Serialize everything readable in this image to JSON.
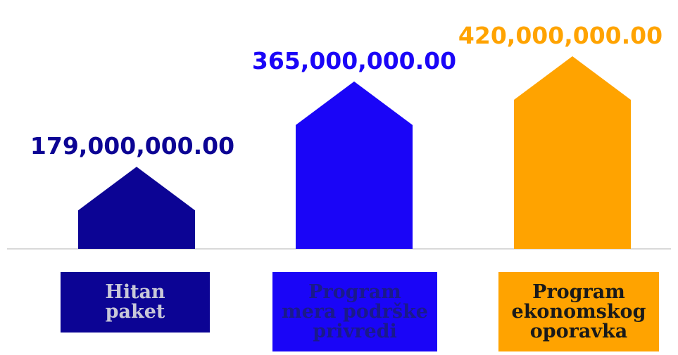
{
  "chart_data": {
    "type": "bar",
    "categories": [
      "Hitan paket",
      "Program mera podrške privredi",
      "Program ekonomskog oporavka"
    ],
    "values": [
      179000000,
      365000000,
      420000000
    ],
    "value_labels": [
      "179,000,000.00",
      "365,000,000.00",
      "420,000,000.00"
    ],
    "category_lines": [
      [
        "Hitan",
        "paket"
      ],
      [
        "Program",
        "mera podrške",
        "privredi"
      ],
      [
        "Program",
        "ekonomskog",
        "oporavka"
      ]
    ],
    "colors": [
      "#0c0494",
      "#1a05f7",
      "#ffa300"
    ],
    "label_text_colors": [
      "#c8c8d8",
      "#1a1a8a",
      "#1a1a1a"
    ],
    "baseline_color": "#d9d9d9",
    "bar_shape": "house",
    "title": "",
    "xlabel": "",
    "ylabel": "",
    "ylim": [
      0,
      420000000
    ],
    "grid": false,
    "legend": "none"
  }
}
